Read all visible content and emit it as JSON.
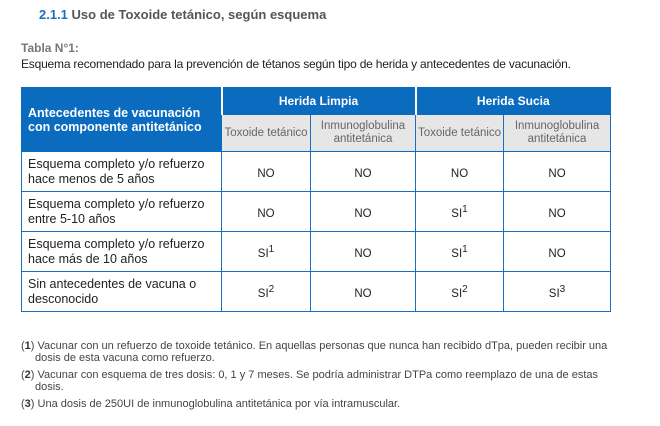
{
  "section": {
    "number": "2.1.1",
    "title": "Uso de Toxoide tetánico, según esquema"
  },
  "caption": "Tabla N°1:",
  "description": "Esquema recomendado para la prevención de tétanos según tipo de herida y antecedentes de vacunación.",
  "table": {
    "row_header": "Antecedentes de vacunación con componente antitetánico",
    "groups": [
      "Herida Limpia",
      "Herida Sucia"
    ],
    "subheaders": [
      "Toxoide tetánico",
      "Inmunoglobulina antitetánica",
      "Toxoide tetánico",
      "Inmunoglobulina antitetánica"
    ],
    "rows": [
      {
        "label": "Esquema completo y/o refuerzo hace menos de 5 años",
        "cells": [
          {
            "v": "NO",
            "s": ""
          },
          {
            "v": "NO",
            "s": ""
          },
          {
            "v": "NO",
            "s": ""
          },
          {
            "v": "NO",
            "s": ""
          }
        ]
      },
      {
        "label": "Esquema completo y/o refuerzo entre 5-10 años",
        "cells": [
          {
            "v": "NO",
            "s": ""
          },
          {
            "v": "NO",
            "s": ""
          },
          {
            "v": "SI",
            "s": "1"
          },
          {
            "v": "NO",
            "s": ""
          }
        ]
      },
      {
        "label": "Esquema completo y/o refuerzo hace más de 10 años",
        "cells": [
          {
            "v": "SI",
            "s": "1"
          },
          {
            "v": "NO",
            "s": ""
          },
          {
            "v": "SI",
            "s": "1"
          },
          {
            "v": "NO",
            "s": ""
          }
        ]
      },
      {
        "label": "Sin antecedentes de vacuna o desconocido",
        "cells": [
          {
            "v": "SI",
            "s": "2"
          },
          {
            "v": "NO",
            "s": ""
          },
          {
            "v": "SI",
            "s": "2"
          },
          {
            "v": "SI",
            "s": "3"
          }
        ]
      }
    ]
  },
  "notes": [
    {
      "n": "1",
      "text": "Vacunar con un refuerzo de toxoide tetánico. En aquellas personas que nunca han recibido dTpa, pueden recibir una dosis de esta vacuna como refuerzo."
    },
    {
      "n": "2",
      "text": "Vacunar con esquema de tres dosis: 0, 1 y 7 meses. Se podría administrar DTPa como reemplazo de una de estas dosis."
    },
    {
      "n": "3",
      "text": "Una dosis de 250UI de inmunoglobulina antitetánica por vía intramuscular."
    }
  ]
}
